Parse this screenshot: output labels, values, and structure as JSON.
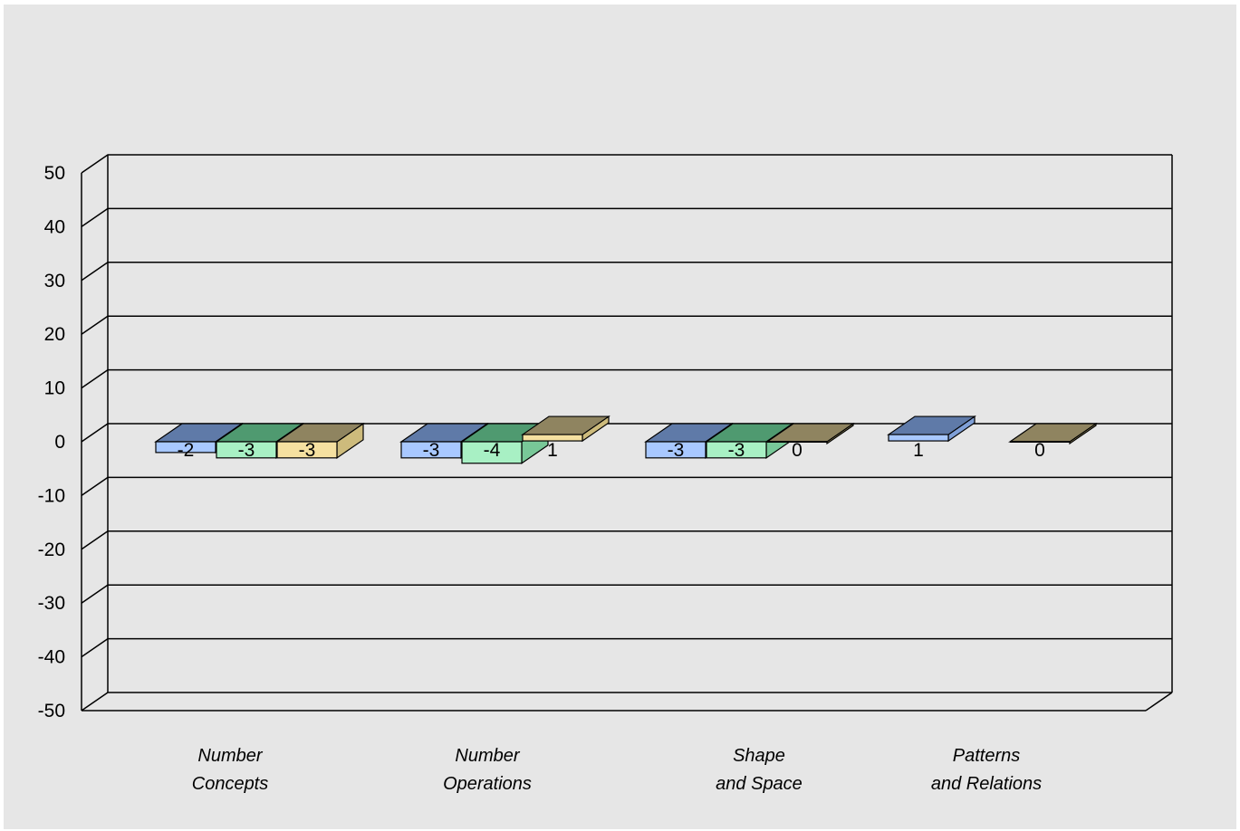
{
  "chart_data": {
    "type": "bar",
    "title": "",
    "xlabel": "",
    "ylabel": "",
    "ylim": [
      -50,
      50
    ],
    "yticks": [
      50,
      40,
      30,
      20,
      10,
      0,
      -10,
      -20,
      -30,
      -40,
      -50
    ],
    "yticks_text": [
      "50",
      "40",
      "30",
      "20",
      "10",
      "0",
      "-10",
      "-20",
      "-30",
      "-40",
      "-50"
    ],
    "grid": true,
    "categories": [
      [
        "Number",
        "Concepts"
      ],
      [
        "Number",
        "Operations"
      ],
      [
        "Shape",
        "and Space"
      ],
      [
        "Patterns",
        "and Relations"
      ]
    ],
    "series": [
      {
        "values": [
          -2,
          -3,
          -3,
          1
        ],
        "labels": [
          "-2",
          "-3",
          "-3",
          "1"
        ],
        "front": "#a8c8ff",
        "top": "#5f7aa8",
        "side": "#7f9fd6"
      },
      {
        "values": [
          -3,
          -4,
          -3,
          null
        ],
        "labels": [
          "-3",
          "-4",
          "-3",
          ""
        ],
        "front": "#a8f0c4",
        "top": "#4f9a70",
        "side": "#78c898"
      },
      {
        "values": [
          -3,
          1,
          0,
          0
        ],
        "labels": [
          "-3",
          "1",
          "0",
          "0"
        ],
        "front": "#f5e0a0",
        "top": "#8f8460",
        "side": "#cdbb7c"
      }
    ]
  }
}
